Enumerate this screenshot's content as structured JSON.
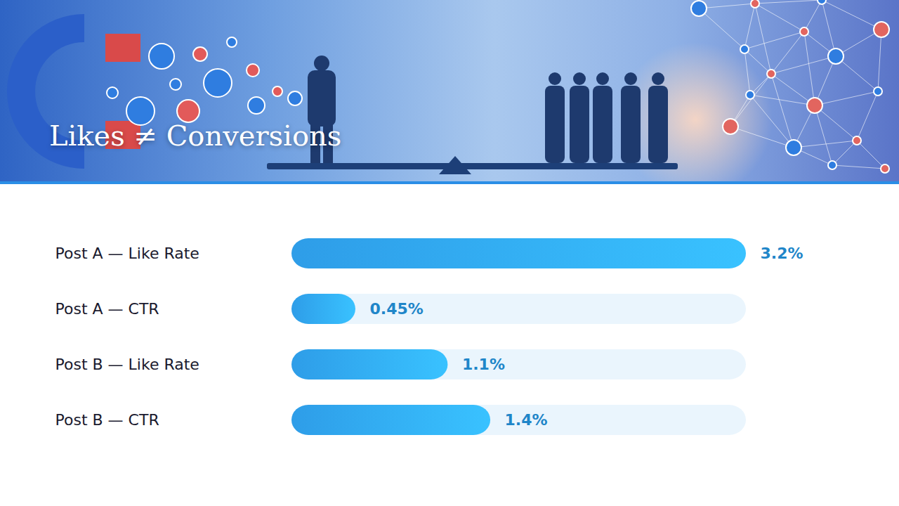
{
  "chart_data": {
    "type": "bar",
    "title": "Likes ≠ Conversions",
    "orientation": "horizontal",
    "categories": [
      "Post A — Like Rate",
      "Post A — CTR",
      "Post B — Like Rate",
      "Post B — CTR"
    ],
    "values": [
      3.2,
      0.45,
      1.1,
      1.4
    ],
    "value_labels": [
      "3.2%",
      "0.45%",
      "1.1%",
      "1.4%"
    ],
    "data_labels": true,
    "xlim": [
      0,
      3.2
    ],
    "tick_labels": "y",
    "grid": false,
    "color": "#2e9de8"
  }
}
